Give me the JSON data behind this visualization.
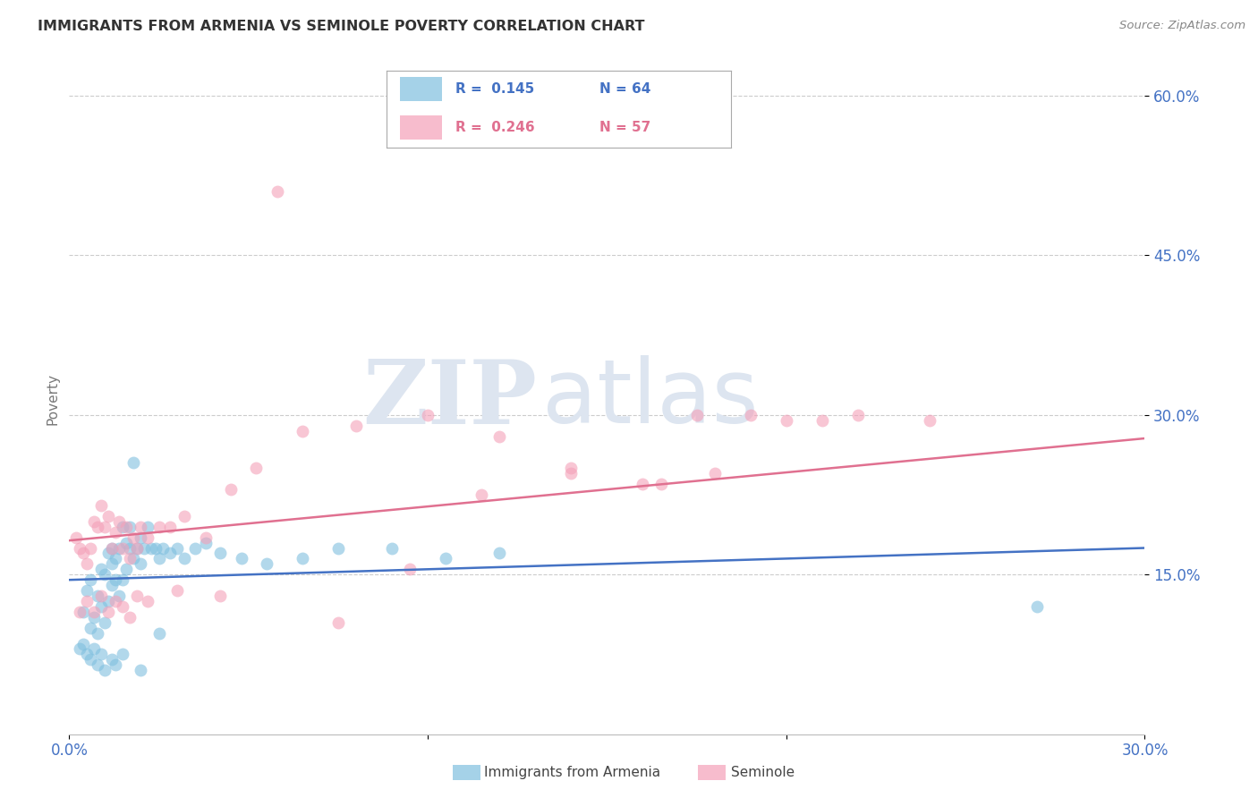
{
  "title": "IMMIGRANTS FROM ARMENIA VS SEMINOLE POVERTY CORRELATION CHART",
  "source": "Source: ZipAtlas.com",
  "ylabel": "Poverty",
  "xlim": [
    0.0,
    0.3
  ],
  "ylim": [
    0.0,
    0.63
  ],
  "ytick_labels": [
    "15.0%",
    "30.0%",
    "45.0%",
    "60.0%"
  ],
  "ytick_values": [
    0.15,
    0.3,
    0.45,
    0.6
  ],
  "xtick_values": [
    0.0,
    0.1,
    0.2,
    0.3
  ],
  "xtick_labels_show": [
    "0.0%",
    "",
    "",
    "30.0%"
  ],
  "legend_r1": "0.145",
  "legend_n1": "64",
  "legend_r2": "0.246",
  "legend_n2": "57",
  "color_blue": "#7fbfdf",
  "color_pink": "#f4a0b8",
  "color_blue_line": "#4472c4",
  "color_pink_line": "#e07090",
  "color_axis_labels": "#4472c4",
  "color_title": "#333333",
  "color_source": "#888888",
  "watermark_zip": "ZIP",
  "watermark_atlas": "atlas",
  "watermark_color": "#dde5f0",
  "blue_scatter_x": [
    0.004,
    0.005,
    0.006,
    0.006,
    0.007,
    0.008,
    0.008,
    0.009,
    0.009,
    0.01,
    0.01,
    0.011,
    0.011,
    0.012,
    0.012,
    0.012,
    0.013,
    0.013,
    0.014,
    0.014,
    0.015,
    0.015,
    0.016,
    0.016,
    0.017,
    0.017,
    0.018,
    0.019,
    0.02,
    0.02,
    0.021,
    0.022,
    0.023,
    0.024,
    0.025,
    0.026,
    0.028,
    0.03,
    0.032,
    0.035,
    0.038,
    0.042,
    0.048,
    0.055,
    0.065,
    0.075,
    0.09,
    0.105,
    0.12,
    0.27,
    0.003,
    0.004,
    0.005,
    0.006,
    0.007,
    0.008,
    0.009,
    0.01,
    0.012,
    0.013,
    0.015,
    0.018,
    0.02,
    0.025
  ],
  "blue_scatter_y": [
    0.115,
    0.135,
    0.1,
    0.145,
    0.11,
    0.095,
    0.13,
    0.12,
    0.155,
    0.105,
    0.15,
    0.125,
    0.17,
    0.14,
    0.16,
    0.175,
    0.145,
    0.165,
    0.13,
    0.175,
    0.145,
    0.195,
    0.155,
    0.18,
    0.175,
    0.195,
    0.165,
    0.175,
    0.16,
    0.185,
    0.175,
    0.195,
    0.175,
    0.175,
    0.165,
    0.175,
    0.17,
    0.175,
    0.165,
    0.175,
    0.18,
    0.17,
    0.165,
    0.16,
    0.165,
    0.175,
    0.175,
    0.165,
    0.17,
    0.12,
    0.08,
    0.085,
    0.075,
    0.07,
    0.08,
    0.065,
    0.075,
    0.06,
    0.07,
    0.065,
    0.075,
    0.255,
    0.06,
    0.095
  ],
  "pink_scatter_x": [
    0.002,
    0.003,
    0.004,
    0.005,
    0.006,
    0.007,
    0.008,
    0.009,
    0.01,
    0.011,
    0.012,
    0.013,
    0.014,
    0.015,
    0.016,
    0.017,
    0.018,
    0.019,
    0.02,
    0.022,
    0.025,
    0.028,
    0.032,
    0.038,
    0.045,
    0.052,
    0.065,
    0.08,
    0.1,
    0.12,
    0.14,
    0.16,
    0.18,
    0.2,
    0.22,
    0.24,
    0.003,
    0.005,
    0.007,
    0.009,
    0.011,
    0.013,
    0.015,
    0.017,
    0.019,
    0.022,
    0.03,
    0.042,
    0.058,
    0.075,
    0.095,
    0.115,
    0.14,
    0.165,
    0.175,
    0.19,
    0.21
  ],
  "pink_scatter_y": [
    0.185,
    0.175,
    0.17,
    0.16,
    0.175,
    0.2,
    0.195,
    0.215,
    0.195,
    0.205,
    0.175,
    0.19,
    0.2,
    0.175,
    0.195,
    0.165,
    0.185,
    0.175,
    0.195,
    0.185,
    0.195,
    0.195,
    0.205,
    0.185,
    0.23,
    0.25,
    0.285,
    0.29,
    0.3,
    0.28,
    0.25,
    0.235,
    0.245,
    0.295,
    0.3,
    0.295,
    0.115,
    0.125,
    0.115,
    0.13,
    0.115,
    0.125,
    0.12,
    0.11,
    0.13,
    0.125,
    0.135,
    0.13,
    0.51,
    0.105,
    0.155,
    0.225,
    0.245,
    0.235,
    0.3,
    0.3,
    0.295
  ],
  "blue_trendline_x": [
    0.0,
    0.3
  ],
  "blue_trendline_y": [
    0.145,
    0.175
  ],
  "pink_trendline_x": [
    0.0,
    0.3
  ],
  "pink_trendline_y": [
    0.182,
    0.278
  ]
}
